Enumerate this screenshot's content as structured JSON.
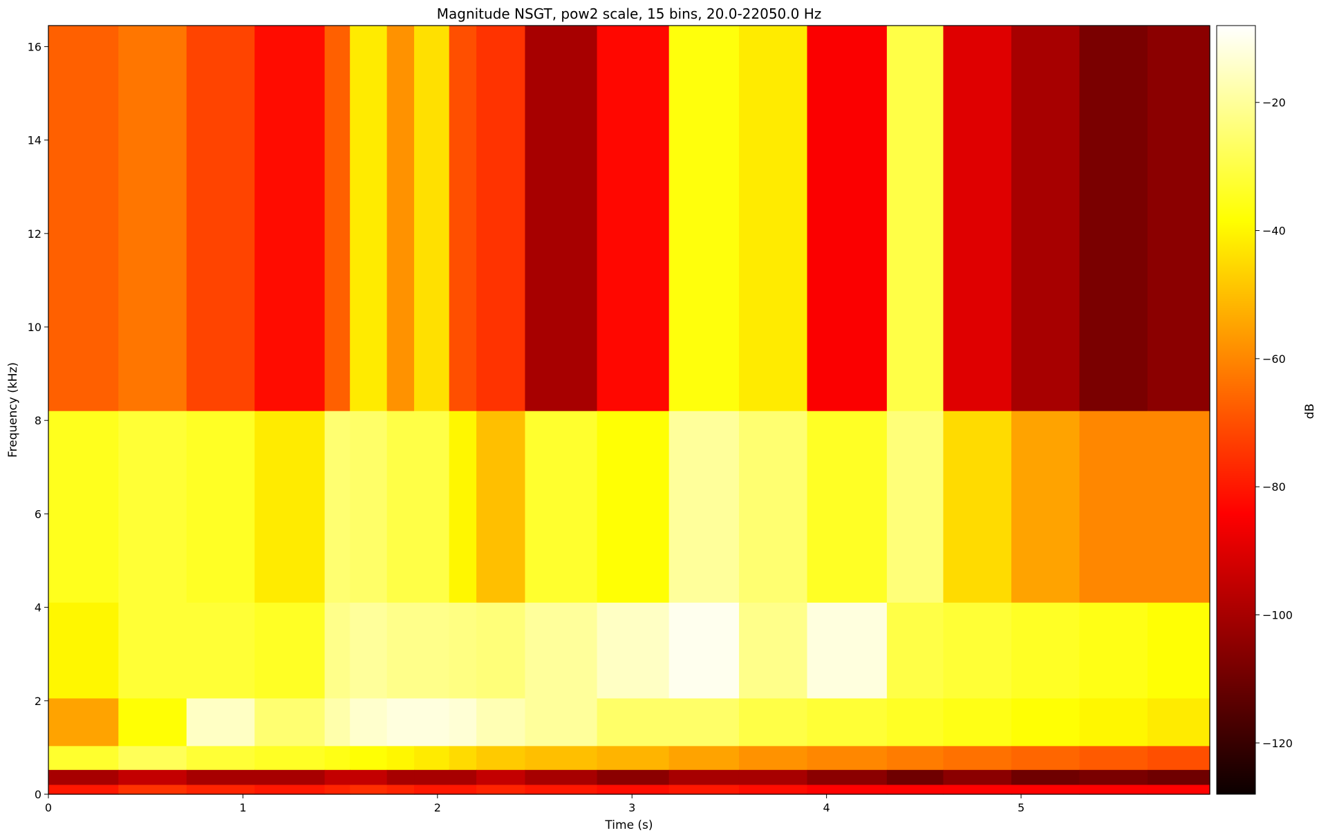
{
  "chart_data": {
    "type": "heatmap",
    "title": "Magnitude NSGT, pow2 scale, 15 bins, 20.0-22050.0 Hz",
    "xlabel": "Time (s)",
    "ylabel": "Frequency (kHz)",
    "xlim": [
      0,
      5.97
    ],
    "ylim": [
      0,
      16.45
    ],
    "x_ticks": [
      0,
      1,
      2,
      3,
      4,
      5
    ],
    "x_tick_labels": [
      "0",
      "1",
      "2",
      "3",
      "4",
      "5"
    ],
    "y_ticks": [
      0,
      2,
      4,
      6,
      8,
      10,
      12,
      14,
      16
    ],
    "y_tick_labels": [
      "0",
      "2",
      "4",
      "6",
      "8",
      "10",
      "12",
      "14",
      "16"
    ],
    "colormap": "hot",
    "colorbar": {
      "label": "dB",
      "range": [
        -128,
        -8
      ],
      "ticks": [
        -20,
        -40,
        -60,
        -80,
        -100,
        -120
      ],
      "tick_labels": [
        "−20",
        "−40",
        "−60",
        "−80",
        "−100",
        "−120"
      ]
    },
    "segment_starts_s": [
      0,
      0.36,
      0.71,
      1.06,
      1.42,
      1.55,
      1.74,
      1.88,
      2.06,
      2.2,
      2.45,
      2.82,
      3.19,
      3.55,
      3.9,
      4.31,
      4.6,
      4.95,
      5.3,
      5.65
    ],
    "bands": [
      {
        "freq_khz": [
          8.2,
          16.45
        ],
        "db": [
          -67,
          -63,
          -72,
          -82,
          -67,
          -42,
          -58,
          -44,
          -70,
          -75,
          -100,
          -83,
          -37,
          -42,
          -85,
          -30,
          -90,
          -100,
          -108,
          -105
        ]
      },
      {
        "freq_khz": [
          4.1,
          8.2
        ],
        "db": [
          -35,
          -32,
          -34,
          -42,
          -25,
          -26,
          -30,
          -30,
          -40,
          -50,
          -33,
          -38,
          -20,
          -25,
          -34,
          -24,
          -45,
          -55,
          -60,
          -60
        ]
      },
      {
        "freq_khz": [
          2.05,
          4.1
        ],
        "db": [
          -40,
          -32,
          -32,
          -34,
          -22,
          -20,
          -22,
          -22,
          -23,
          -24,
          -20,
          -15,
          -10,
          -22,
          -12,
          -30,
          -32,
          -34,
          -36,
          -38
        ]
      },
      {
        "freq_khz": [
          1.03,
          2.05
        ],
        "db": [
          -55,
          -38,
          -15,
          -25,
          -18,
          -14,
          -12,
          -12,
          -13,
          -17,
          -20,
          -26,
          -26,
          -30,
          -32,
          -34,
          -36,
          -38,
          -40,
          -42
        ]
      },
      {
        "freq_khz": [
          0.52,
          1.03
        ],
        "db": [
          -33,
          -28,
          -32,
          -34,
          -36,
          -38,
          -40,
          -42,
          -45,
          -48,
          -50,
          -52,
          -55,
          -58,
          -60,
          -62,
          -64,
          -66,
          -68,
          -70
        ]
      },
      {
        "freq_khz": [
          0.2,
          0.52
        ],
        "db": [
          -100,
          -95,
          -100,
          -100,
          -95,
          -95,
          -100,
          -100,
          -100,
          -95,
          -100,
          -105,
          -100,
          -100,
          -105,
          -110,
          -105,
          -110,
          -108,
          -110
        ]
      },
      {
        "freq_khz": [
          0.0,
          0.2
        ],
        "db": [
          -80,
          -75,
          -78,
          -80,
          -78,
          -76,
          -78,
          -80,
          -80,
          -78,
          -80,
          -82,
          -80,
          -82,
          -84,
          -84,
          -84,
          -84,
          -84,
          -84
        ]
      }
    ]
  }
}
